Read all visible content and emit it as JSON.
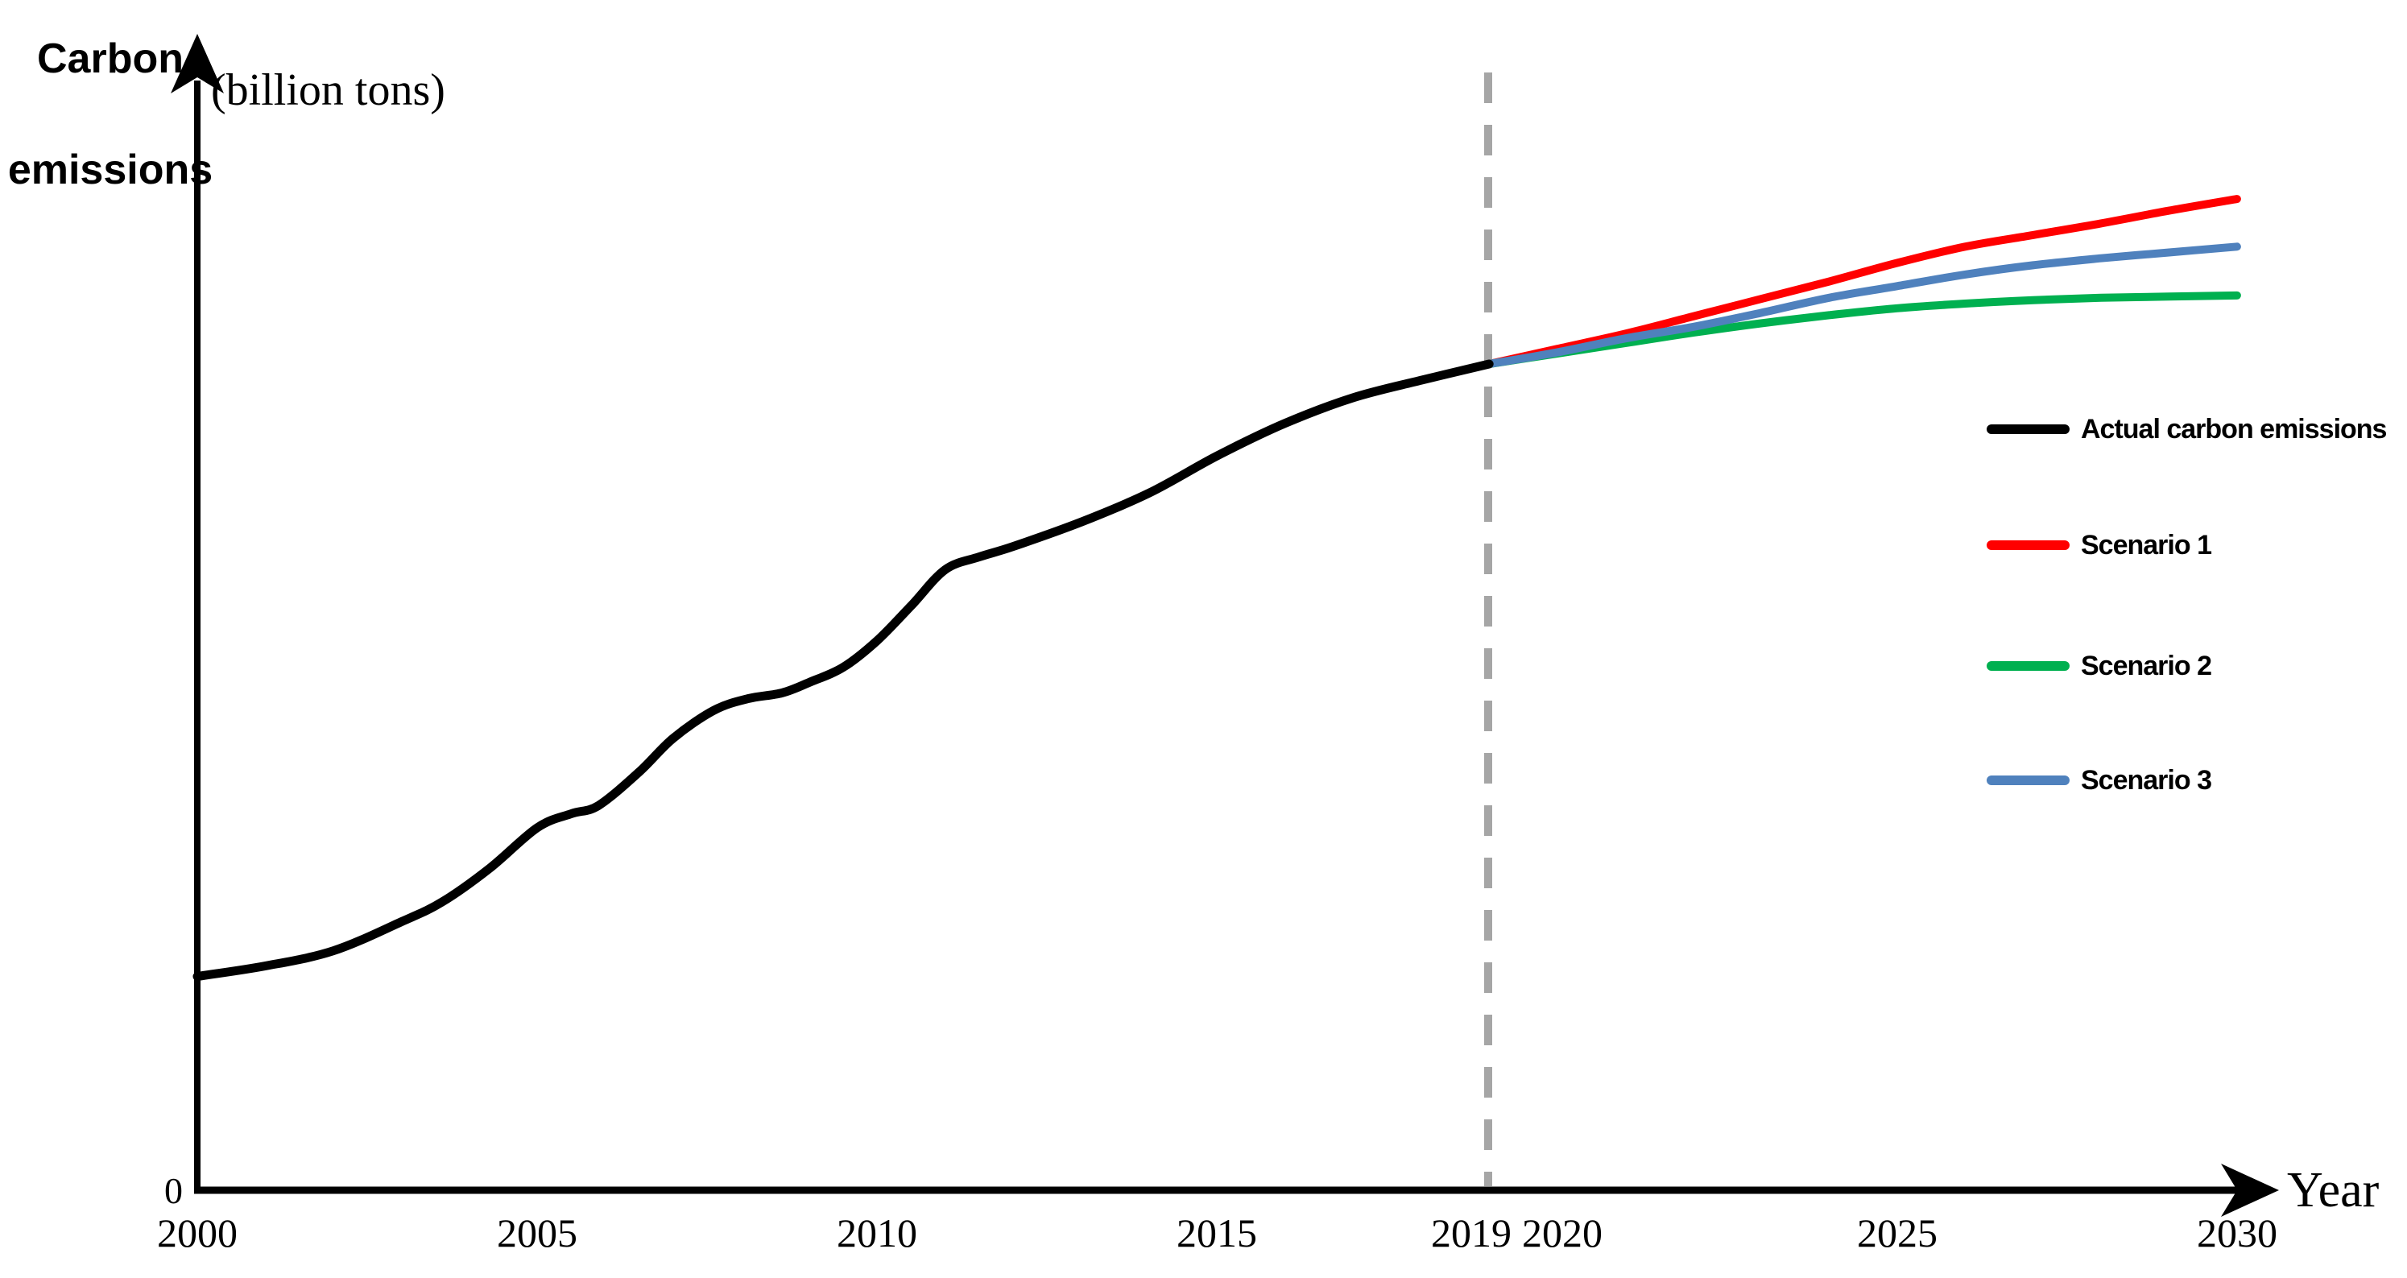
{
  "chart_data": {
    "type": "line",
    "title": "",
    "y_axis": {
      "label_line1": "Carbon",
      "label_line2": "emissions",
      "units": "(billion tons)",
      "origin_label": "0",
      "numeric_scale_shown": false,
      "value_definition": "fraction of y-axis height above baseline (only 0 is labeled on axis)"
    },
    "x_axis": {
      "label": "Year",
      "ticks": [
        {
          "label": "2000",
          "year": 2000,
          "color": "#000000"
        },
        {
          "label": "2005",
          "year": 2005,
          "color": "#000000"
        },
        {
          "label": "2010",
          "year": 2010,
          "color": "#000000"
        },
        {
          "label": "2015",
          "year": 2015,
          "color": "#000000"
        },
        {
          "label": "2019",
          "year": 2019,
          "color": "#9e9e9e"
        },
        {
          "label": "2020",
          "year": 2020,
          "color": "#000000"
        },
        {
          "label": "2025",
          "year": 2025,
          "color": "#000000"
        },
        {
          "label": "2030",
          "year": 2030,
          "color": "#000000"
        }
      ]
    },
    "divider": {
      "year": 2019,
      "style": "dashed",
      "color": "#a6a6a6"
    },
    "xlim": [
      2000,
      2030
    ],
    "ylim": [
      0,
      1
    ],
    "grid": false,
    "series": [
      {
        "name": "Actual carbon emissions",
        "color": "#000000",
        "width": 11,
        "points": [
          [
            2000,
            0.184
          ],
          [
            2001,
            0.193
          ],
          [
            2002,
            0.206
          ],
          [
            2003,
            0.231
          ],
          [
            2003.6,
            0.248
          ],
          [
            2004.3,
            0.277
          ],
          [
            2005,
            0.312
          ],
          [
            2005.5,
            0.324
          ],
          [
            2005.9,
            0.331
          ],
          [
            2006.5,
            0.36
          ],
          [
            2007,
            0.389
          ],
          [
            2007.6,
            0.413
          ],
          [
            2008.1,
            0.423
          ],
          [
            2008.6,
            0.428
          ],
          [
            2009,
            0.437
          ],
          [
            2009.5,
            0.45
          ],
          [
            2010,
            0.473
          ],
          [
            2010.5,
            0.503
          ],
          [
            2011,
            0.534
          ],
          [
            2011.5,
            0.545
          ],
          [
            2012,
            0.554
          ],
          [
            2013,
            0.575
          ],
          [
            2014,
            0.6
          ],
          [
            2015,
            0.632
          ],
          [
            2016,
            0.66
          ],
          [
            2017,
            0.682
          ],
          [
            2018,
            0.697
          ],
          [
            2019,
            0.711
          ]
        ]
      },
      {
        "name": "Scenario 1",
        "color": "#ff0000",
        "width": 10,
        "points": [
          [
            2019,
            0.711
          ],
          [
            2020,
            0.724
          ],
          [
            2021,
            0.737
          ],
          [
            2022,
            0.752
          ],
          [
            2023,
            0.767
          ],
          [
            2024,
            0.782
          ],
          [
            2025,
            0.798
          ],
          [
            2026,
            0.812
          ],
          [
            2027,
            0.822
          ],
          [
            2028,
            0.832
          ],
          [
            2029,
            0.843
          ],
          [
            2030,
            0.853
          ]
        ]
      },
      {
        "name": "Scenario 2",
        "color": "#00b050",
        "width": 10,
        "points": [
          [
            2019,
            0.711
          ],
          [
            2020,
            0.72
          ],
          [
            2021,
            0.729
          ],
          [
            2022,
            0.738
          ],
          [
            2023,
            0.746
          ],
          [
            2024,
            0.753
          ],
          [
            2025,
            0.759
          ],
          [
            2026,
            0.763
          ],
          [
            2027,
            0.766
          ],
          [
            2028,
            0.768
          ],
          [
            2029,
            0.769
          ],
          [
            2030,
            0.77
          ]
        ]
      },
      {
        "name": "Scenario 3",
        "color": "#4f81bd",
        "width": 10,
        "points": [
          [
            2019,
            0.711
          ],
          [
            2020,
            0.721
          ],
          [
            2021,
            0.733
          ],
          [
            2022,
            0.743
          ],
          [
            2023,
            0.755
          ],
          [
            2024,
            0.768
          ],
          [
            2025,
            0.778
          ],
          [
            2026,
            0.788
          ],
          [
            2027,
            0.796
          ],
          [
            2028,
            0.802
          ],
          [
            2029,
            0.807
          ],
          [
            2030,
            0.812
          ]
        ]
      }
    ],
    "legend": {
      "position": "right",
      "entries": [
        {
          "label": "Actual carbon emissions",
          "color": "#000000"
        },
        {
          "label": "Scenario 1",
          "color": "#ff0000"
        },
        {
          "label": "Scenario 2",
          "color": "#00b050"
        },
        {
          "label": "Scenario 3",
          "color": "#4f81bd"
        }
      ]
    }
  }
}
